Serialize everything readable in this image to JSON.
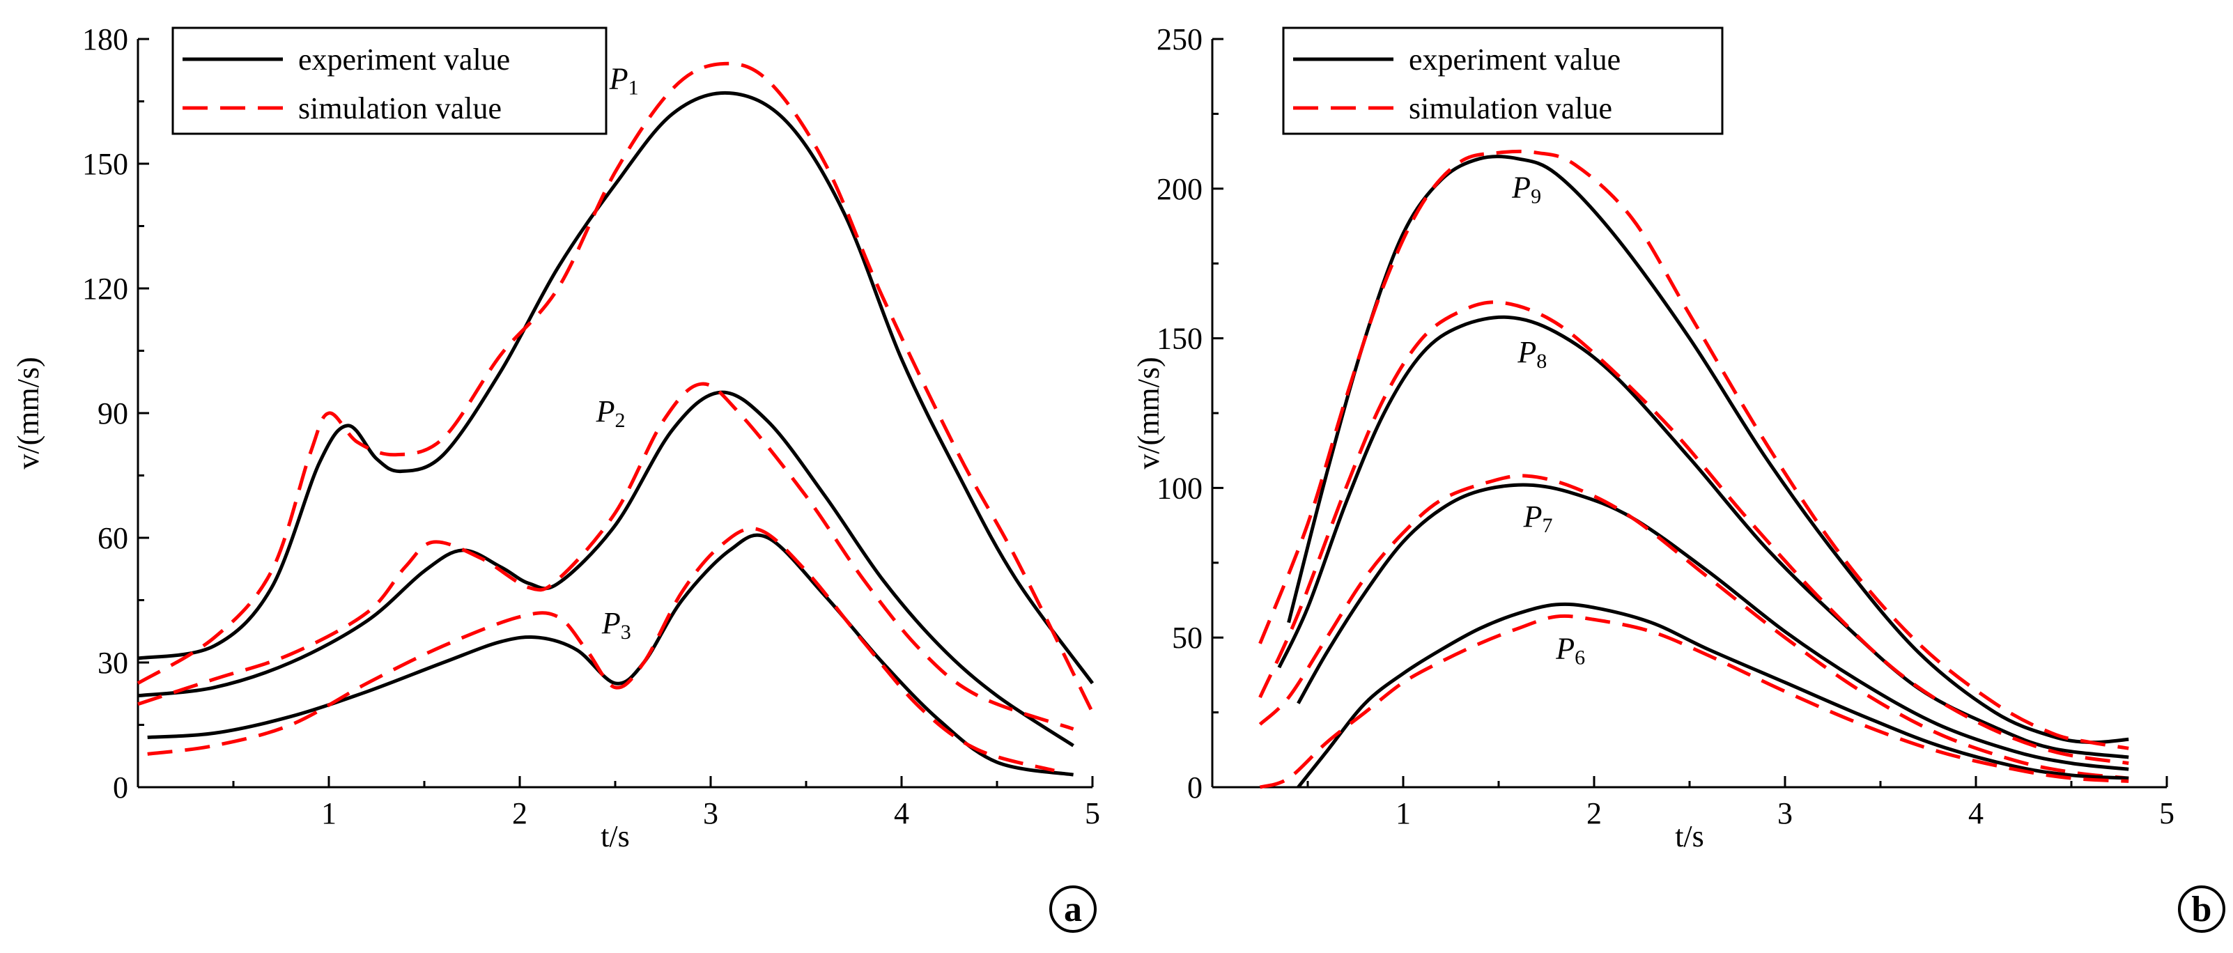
{
  "chart_data": [
    {
      "panel": "a",
      "type": "line",
      "xlabel": "t/s",
      "ylabel": "v/(mm/s)",
      "xlim": [
        0,
        5
      ],
      "ylim": [
        0,
        180
      ],
      "xticks": [
        1,
        2,
        3,
        4,
        5
      ],
      "yticks": [
        0,
        30,
        60,
        90,
        120,
        150,
        180
      ],
      "legend": {
        "position": "top-left",
        "entries": [
          "experiment value",
          "simulation value"
        ]
      },
      "curves": [
        {
          "label": "P1",
          "label_base": "P",
          "label_sub": "1",
          "label_at": [
            2.47,
            168
          ],
          "experiment": [
            [
              0,
              31
            ],
            [
              0.4,
              34
            ],
            [
              0.7,
              48
            ],
            [
              0.95,
              78
            ],
            [
              1.1,
              87
            ],
            [
              1.25,
              79
            ],
            [
              1.38,
              76
            ],
            [
              1.6,
              80
            ],
            [
              1.9,
              100
            ],
            [
              2.2,
              125
            ],
            [
              2.5,
              145
            ],
            [
              2.8,
              162
            ],
            [
              3.1,
              167
            ],
            [
              3.4,
              160
            ],
            [
              3.7,
              138
            ],
            [
              4.0,
              103
            ],
            [
              4.3,
              75
            ],
            [
              4.6,
              50
            ],
            [
              5.0,
              25
            ]
          ],
          "simulation": [
            [
              0,
              25
            ],
            [
              0.4,
              36
            ],
            [
              0.7,
              52
            ],
            [
              0.9,
              80
            ],
            [
              1.0,
              90
            ],
            [
              1.15,
              83
            ],
            [
              1.35,
              80
            ],
            [
              1.6,
              84
            ],
            [
              1.9,
              104
            ],
            [
              2.2,
              120
            ],
            [
              2.5,
              148
            ],
            [
              2.8,
              168
            ],
            [
              3.05,
              174
            ],
            [
              3.3,
              170
            ],
            [
              3.6,
              150
            ],
            [
              3.9,
              118
            ],
            [
              4.3,
              80
            ],
            [
              4.6,
              55
            ],
            [
              5.0,
              18
            ]
          ]
        },
        {
          "label": "P2",
          "label_base": "P",
          "label_sub": "2",
          "label_at": [
            2.4,
            88
          ],
          "experiment": [
            [
              0,
              22
            ],
            [
              0.4,
              24
            ],
            [
              0.8,
              30
            ],
            [
              1.2,
              40
            ],
            [
              1.5,
              52
            ],
            [
              1.7,
              57
            ],
            [
              1.9,
              53
            ],
            [
              2.05,
              49
            ],
            [
              2.2,
              49
            ],
            [
              2.5,
              63
            ],
            [
              2.8,
              86
            ],
            [
              3.05,
              95
            ],
            [
              3.3,
              88
            ],
            [
              3.6,
              70
            ],
            [
              3.9,
              50
            ],
            [
              4.2,
              34
            ],
            [
              4.5,
              22
            ],
            [
              4.9,
              10
            ]
          ],
          "simulation": [
            [
              0,
              20
            ],
            [
              0.4,
              26
            ],
            [
              0.8,
              32
            ],
            [
              1.2,
              42
            ],
            [
              1.4,
              53
            ],
            [
              1.55,
              59
            ],
            [
              1.8,
              55
            ],
            [
              2.05,
              48
            ],
            [
              2.2,
              50
            ],
            [
              2.5,
              66
            ],
            [
              2.75,
              88
            ],
            [
              2.95,
              97
            ],
            [
              3.15,
              90
            ],
            [
              3.5,
              70
            ],
            [
              3.8,
              50
            ],
            [
              4.1,
              33
            ],
            [
              4.4,
              22
            ],
            [
              4.9,
              14
            ]
          ]
        },
        {
          "label": "P3",
          "label_base": "P",
          "label_sub": "3",
          "label_at": [
            2.43,
            37
          ],
          "experiment": [
            [
              0.05,
              12
            ],
            [
              0.4,
              13
            ],
            [
              0.8,
              17
            ],
            [
              1.2,
              23
            ],
            [
              1.6,
              30
            ],
            [
              1.9,
              35
            ],
            [
              2.1,
              36
            ],
            [
              2.3,
              33
            ],
            [
              2.5,
              25
            ],
            [
              2.65,
              30
            ],
            [
              2.85,
              45
            ],
            [
              3.1,
              57
            ],
            [
              3.3,
              60
            ],
            [
              3.6,
              46
            ],
            [
              3.9,
              30
            ],
            [
              4.2,
              16
            ],
            [
              4.5,
              6
            ],
            [
              4.9,
              3
            ]
          ],
          "simulation": [
            [
              0.05,
              8
            ],
            [
              0.4,
              10
            ],
            [
              0.8,
              15
            ],
            [
              1.2,
              25
            ],
            [
              1.6,
              34
            ],
            [
              2.0,
              41
            ],
            [
              2.2,
              41
            ],
            [
              2.35,
              33
            ],
            [
              2.5,
              24
            ],
            [
              2.65,
              30
            ],
            [
              2.85,
              47
            ],
            [
              3.05,
              58
            ],
            [
              3.25,
              62
            ],
            [
              3.5,
              52
            ],
            [
              3.8,
              35
            ],
            [
              4.1,
              19
            ],
            [
              4.4,
              9
            ],
            [
              4.8,
              4
            ]
          ]
        }
      ]
    },
    {
      "panel": "b",
      "type": "line",
      "xlabel": "t/s",
      "ylabel": "v/(mm/s)",
      "xlim": [
        0,
        5
      ],
      "ylim": [
        0,
        250
      ],
      "xticks": [
        1,
        2,
        3,
        4,
        5
      ],
      "yticks": [
        0,
        50,
        100,
        150,
        200,
        250
      ],
      "legend": {
        "position": "top-left",
        "entries": [
          "experiment value",
          "simulation value"
        ]
      },
      "curves": [
        {
          "label": "P9",
          "label_base": "P",
          "label_sub": "9",
          "label_at": [
            1.57,
            197
          ],
          "experiment": [
            [
              0.4,
              55
            ],
            [
              0.6,
              105
            ],
            [
              0.8,
              150
            ],
            [
              1.0,
              185
            ],
            [
              1.2,
              203
            ],
            [
              1.4,
              210
            ],
            [
              1.6,
              210
            ],
            [
              1.8,
              205
            ],
            [
              2.1,
              185
            ],
            [
              2.5,
              150
            ],
            [
              2.9,
              110
            ],
            [
              3.3,
              75
            ],
            [
              3.7,
              45
            ],
            [
              4.1,
              25
            ],
            [
              4.4,
              17
            ],
            [
              4.6,
              15
            ],
            [
              4.8,
              16
            ]
          ],
          "simulation": [
            [
              0.25,
              48
            ],
            [
              0.5,
              88
            ],
            [
              0.7,
              130
            ],
            [
              0.9,
              168
            ],
            [
              1.1,
              195
            ],
            [
              1.3,
              209
            ],
            [
              1.5,
              212
            ],
            [
              1.7,
              212
            ],
            [
              1.9,
              208
            ],
            [
              2.2,
              190
            ],
            [
              2.5,
              158
            ],
            [
              2.9,
              115
            ],
            [
              3.3,
              77
            ],
            [
              3.7,
              48
            ],
            [
              4.1,
              28
            ],
            [
              4.4,
              18
            ],
            [
              4.6,
              15
            ],
            [
              4.8,
              13
            ]
          ]
        },
        {
          "label": "P8",
          "label_base": "P",
          "label_sub": "8",
          "label_at": [
            1.6,
            142
          ],
          "experiment": [
            [
              0.35,
              40
            ],
            [
              0.5,
              60
            ],
            [
              0.7,
              95
            ],
            [
              0.9,
              125
            ],
            [
              1.1,
              145
            ],
            [
              1.3,
              154
            ],
            [
              1.55,
              157
            ],
            [
              1.8,
              152
            ],
            [
              2.1,
              138
            ],
            [
              2.5,
              110
            ],
            [
              2.9,
              80
            ],
            [
              3.3,
              55
            ],
            [
              3.7,
              33
            ],
            [
              4.1,
              20
            ],
            [
              4.4,
              13
            ],
            [
              4.8,
              10
            ]
          ],
          "simulation": [
            [
              0.25,
              30
            ],
            [
              0.45,
              58
            ],
            [
              0.7,
              100
            ],
            [
              0.9,
              130
            ],
            [
              1.1,
              150
            ],
            [
              1.3,
              159
            ],
            [
              1.5,
              162
            ],
            [
              1.75,
              157
            ],
            [
              2.0,
              145
            ],
            [
              2.4,
              120
            ],
            [
              2.8,
              90
            ],
            [
              3.2,
              62
            ],
            [
              3.6,
              38
            ],
            [
              4.0,
              22
            ],
            [
              4.4,
              12
            ],
            [
              4.8,
              8
            ]
          ]
        },
        {
          "label": "P7",
          "label_base": "P",
          "label_sub": "7",
          "label_at": [
            1.63,
            87
          ],
          "experiment": [
            [
              0.45,
              28
            ],
            [
              0.6,
              45
            ],
            [
              0.8,
              65
            ],
            [
              1.0,
              82
            ],
            [
              1.2,
              93
            ],
            [
              1.4,
              99
            ],
            [
              1.65,
              101
            ],
            [
              1.9,
              98
            ],
            [
              2.2,
              90
            ],
            [
              2.6,
              72
            ],
            [
              3.0,
              52
            ],
            [
              3.4,
              35
            ],
            [
              3.8,
              21
            ],
            [
              4.2,
              12
            ],
            [
              4.5,
              8
            ],
            [
              4.8,
              6
            ]
          ],
          "simulation": [
            [
              0.25,
              21
            ],
            [
              0.4,
              30
            ],
            [
              0.6,
              50
            ],
            [
              0.8,
              70
            ],
            [
              1.0,
              85
            ],
            [
              1.2,
              96
            ],
            [
              1.45,
              102
            ],
            [
              1.65,
              104
            ],
            [
              1.9,
              100
            ],
            [
              2.2,
              90
            ],
            [
              2.6,
              70
            ],
            [
              3.0,
              50
            ],
            [
              3.4,
              32
            ],
            [
              3.8,
              18
            ],
            [
              4.2,
              9
            ],
            [
              4.5,
              5
            ],
            [
              4.8,
              3
            ]
          ]
        },
        {
          "label": "P6",
          "label_base": "P",
          "label_sub": "6",
          "label_at": [
            1.8,
            43
          ],
          "experiment": [
            [
              0.45,
              0
            ],
            [
              0.6,
              12
            ],
            [
              0.8,
              28
            ],
            [
              1.0,
              38
            ],
            [
              1.2,
              46
            ],
            [
              1.4,
              53
            ],
            [
              1.6,
              58
            ],
            [
              1.8,
              61
            ],
            [
              2.0,
              60
            ],
            [
              2.3,
              55
            ],
            [
              2.6,
              46
            ],
            [
              3.0,
              35
            ],
            [
              3.4,
              24
            ],
            [
              3.8,
              14
            ],
            [
              4.2,
              7
            ],
            [
              4.5,
              4
            ],
            [
              4.8,
              3
            ]
          ],
          "simulation": [
            [
              0.25,
              0
            ],
            [
              0.4,
              3
            ],
            [
              0.6,
              15
            ],
            [
              0.8,
              25
            ],
            [
              1.0,
              35
            ],
            [
              1.2,
              42
            ],
            [
              1.4,
              48
            ],
            [
              1.6,
              53
            ],
            [
              1.8,
              57
            ],
            [
              2.0,
              56
            ],
            [
              2.3,
              52
            ],
            [
              2.6,
              44
            ],
            [
              3.0,
              32
            ],
            [
              3.4,
              21
            ],
            [
              3.8,
              12
            ],
            [
              4.2,
              6
            ],
            [
              4.5,
              3
            ],
            [
              4.8,
              2
            ]
          ]
        }
      ]
    }
  ],
  "panels": [
    {
      "label": "a"
    },
    {
      "label": "b"
    }
  ]
}
